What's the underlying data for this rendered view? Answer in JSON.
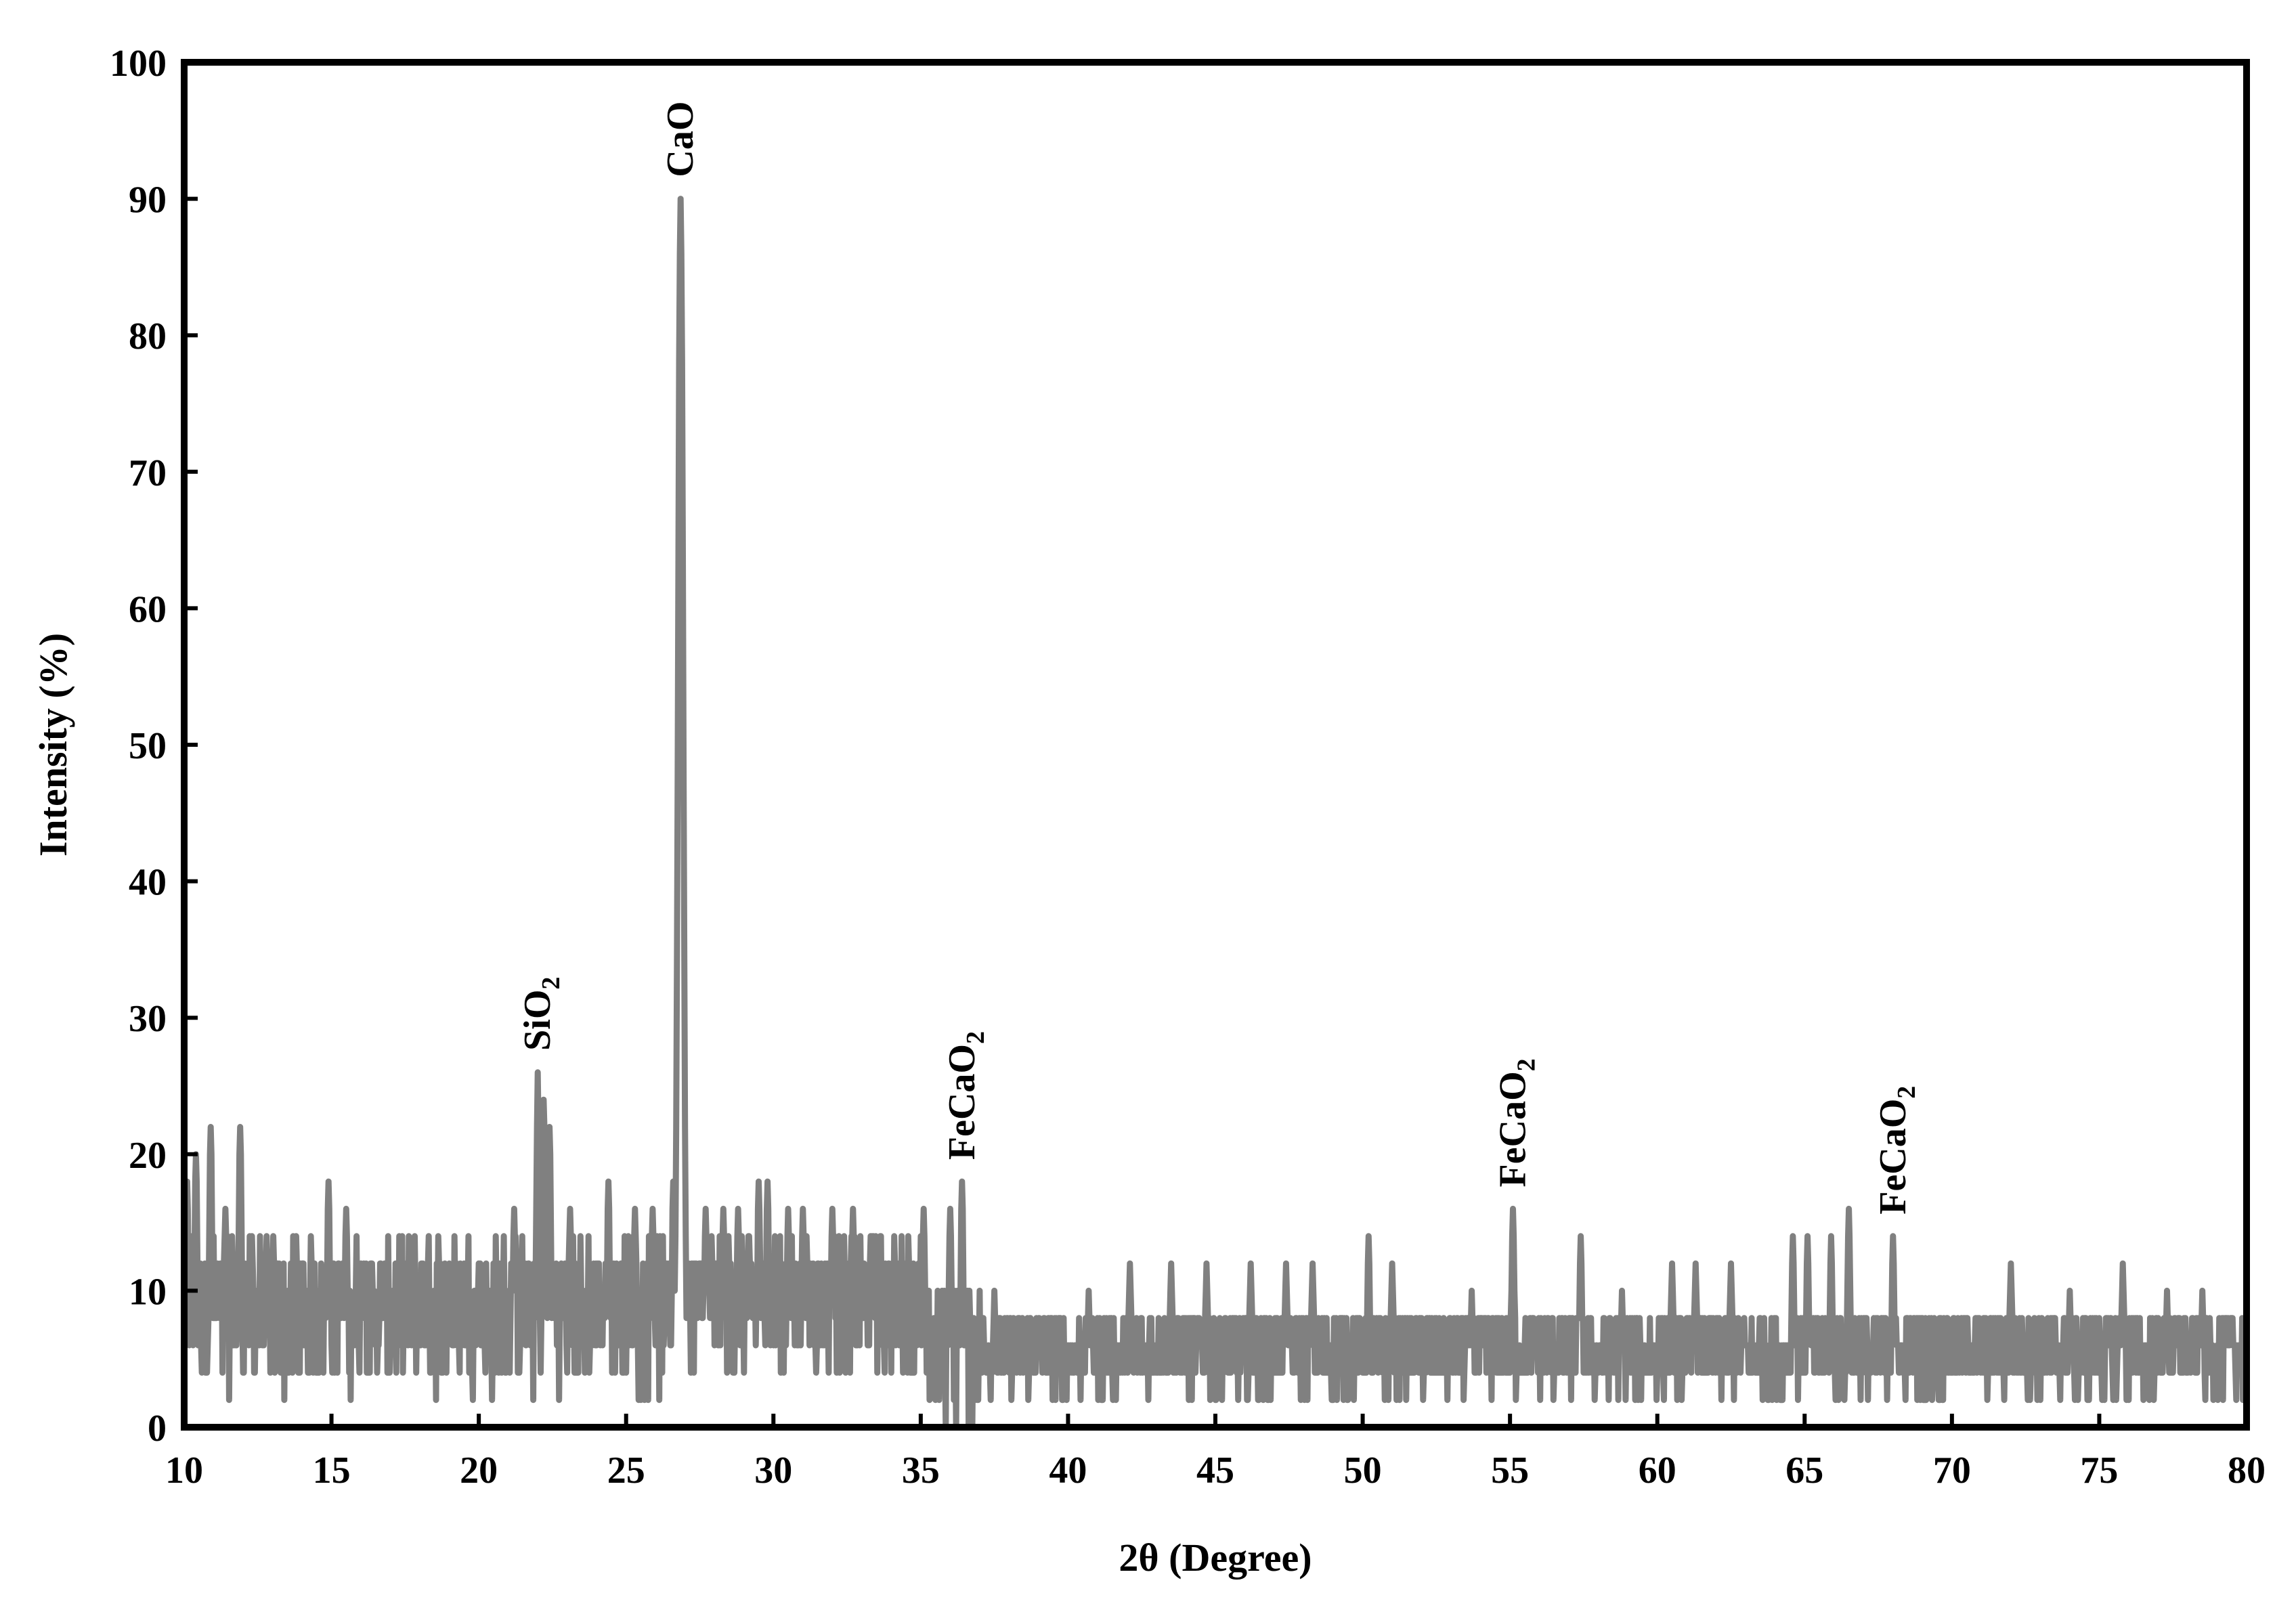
{
  "chart_data": {
    "type": "line",
    "xlabel": "2θ (Degree)",
    "ylabel": "Intensity (%)",
    "xlim": [
      10,
      80
    ],
    "ylim": [
      0,
      100
    ],
    "xticks": [
      10,
      15,
      20,
      25,
      30,
      35,
      40,
      45,
      50,
      55,
      60,
      65,
      70,
      75,
      80
    ],
    "yticks": [
      0,
      10,
      20,
      30,
      40,
      50,
      60,
      70,
      80,
      90,
      100
    ],
    "grid": false,
    "legend": "none",
    "series": [
      {
        "color": "#808080",
        "peaks": [
          {
            "x": 10.1,
            "y": 18
          },
          {
            "x": 10.4,
            "y": 20
          },
          {
            "x": 10.9,
            "y": 22
          },
          {
            "x": 11.4,
            "y": 16
          },
          {
            "x": 11.9,
            "y": 22
          },
          {
            "x": 12.3,
            "y": 14
          },
          {
            "x": 13.8,
            "y": 14
          },
          {
            "x": 14.9,
            "y": 18
          },
          {
            "x": 15.5,
            "y": 16
          },
          {
            "x": 16.1,
            "y": 12
          },
          {
            "x": 16.8,
            "y": 12
          },
          {
            "x": 17.5,
            "y": 12
          },
          {
            "x": 19.0,
            "y": 12
          },
          {
            "x": 20.0,
            "y": 12
          },
          {
            "x": 21.2,
            "y": 16
          },
          {
            "x": 22.0,
            "y": 26
          },
          {
            "x": 22.2,
            "y": 24
          },
          {
            "x": 22.4,
            "y": 22
          },
          {
            "x": 23.1,
            "y": 16
          },
          {
            "x": 24.4,
            "y": 18
          },
          {
            "x": 25.3,
            "y": 16
          },
          {
            "x": 25.9,
            "y": 16
          },
          {
            "x": 26.6,
            "y": 18
          },
          {
            "x": 26.85,
            "y": 90
          },
          {
            "x": 27.7,
            "y": 16
          },
          {
            "x": 28.3,
            "y": 16
          },
          {
            "x": 28.8,
            "y": 16
          },
          {
            "x": 29.5,
            "y": 18
          },
          {
            "x": 29.8,
            "y": 18
          },
          {
            "x": 30.5,
            "y": 16
          },
          {
            "x": 31.0,
            "y": 16
          },
          {
            "x": 32.0,
            "y": 16
          },
          {
            "x": 32.7,
            "y": 16
          },
          {
            "x": 33.4,
            "y": 14
          },
          {
            "x": 35.1,
            "y": 16
          },
          {
            "x": 36.0,
            "y": 16
          },
          {
            "x": 36.4,
            "y": 18
          },
          {
            "x": 37.5,
            "y": 10
          },
          {
            "x": 40.7,
            "y": 10
          },
          {
            "x": 42.1,
            "y": 12
          },
          {
            "x": 43.5,
            "y": 12
          },
          {
            "x": 44.7,
            "y": 12
          },
          {
            "x": 46.2,
            "y": 12
          },
          {
            "x": 47.4,
            "y": 12
          },
          {
            "x": 48.3,
            "y": 12
          },
          {
            "x": 50.2,
            "y": 14
          },
          {
            "x": 51.0,
            "y": 12
          },
          {
            "x": 53.7,
            "y": 10
          },
          {
            "x": 55.1,
            "y": 16
          },
          {
            "x": 57.4,
            "y": 14
          },
          {
            "x": 58.8,
            "y": 10
          },
          {
            "x": 60.5,
            "y": 12
          },
          {
            "x": 61.3,
            "y": 12
          },
          {
            "x": 62.5,
            "y": 12
          },
          {
            "x": 64.6,
            "y": 14
          },
          {
            "x": 65.1,
            "y": 14
          },
          {
            "x": 65.9,
            "y": 14
          },
          {
            "x": 66.5,
            "y": 16
          },
          {
            "x": 68.0,
            "y": 14
          },
          {
            "x": 72.0,
            "y": 12
          },
          {
            "x": 74.0,
            "y": 10
          },
          {
            "x": 75.8,
            "y": 12
          },
          {
            "x": 77.3,
            "y": 10
          },
          {
            "x": 78.5,
            "y": 10
          },
          {
            "x": 79.5,
            "y": 8
          }
        ]
      }
    ],
    "annotations": [
      {
        "label": "SiO",
        "sub": "2",
        "x": 22.0,
        "y": 26
      },
      {
        "label": "CaO",
        "sub": "",
        "x": 26.85,
        "y": 90
      },
      {
        "label": "FeCaO",
        "sub": "2",
        "x": 36.4,
        "y": 18
      },
      {
        "label": "FeCaO",
        "sub": "2",
        "x": 55.1,
        "y": 16
      },
      {
        "label": "FeCaO",
        "sub": "2",
        "x": 68.0,
        "y": 14
      }
    ]
  }
}
